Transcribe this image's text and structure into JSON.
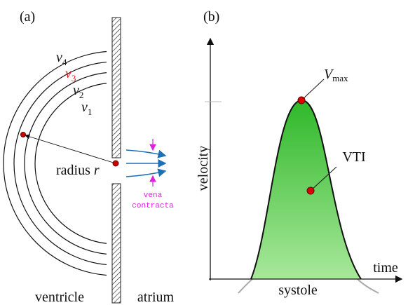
{
  "panel_a": {
    "label": "(a)",
    "streamlines": [
      {
        "base": "v",
        "sub": "4"
      },
      {
        "base": "v",
        "sub": "3"
      },
      {
        "base": "v",
        "sub": "2"
      },
      {
        "base": "v",
        "sub": "1"
      }
    ],
    "radius": {
      "text": "radius ",
      "symbol": "r"
    },
    "vena_contracta": [
      "vena",
      "contracta"
    ],
    "left_region": "ventricle",
    "right_region": "atrium"
  },
  "panel_b": {
    "label": "(b)",
    "y_axis": "velocity",
    "x_axis": "time",
    "interval": "systole",
    "peak": {
      "base": "V",
      "sub": "max"
    },
    "area": "VTI"
  }
}
